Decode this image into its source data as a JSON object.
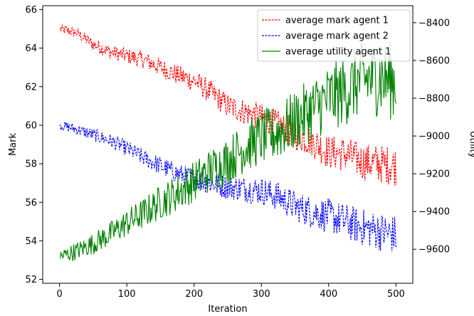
{
  "chart_data": {
    "type": "line",
    "title": "",
    "xlabel": "Iteration",
    "ylabel": "Mark",
    "y2label": "Utility",
    "xlim": [
      -25,
      525
    ],
    "ylim": [
      51.8,
      66.2
    ],
    "y2lim": [
      -9780,
      -8310
    ],
    "xticks": [
      0,
      100,
      200,
      300,
      400,
      500
    ],
    "yticks": [
      52,
      54,
      56,
      58,
      60,
      62,
      64,
      66
    ],
    "y2ticks": [
      -9600,
      -9400,
      -9200,
      -9000,
      -8800,
      -8600,
      -8400
    ],
    "grid": false,
    "legend_position": "upper right",
    "series": [
      {
        "name": "average mark agent 1",
        "axis": "left",
        "color": "#ff0000",
        "style": "dashed",
        "x": [
          0,
          25,
          50,
          75,
          100,
          125,
          150,
          175,
          200,
          225,
          250,
          275,
          300,
          325,
          350,
          375,
          400,
          425,
          450,
          475,
          500
        ],
        "values": [
          65.0,
          64.8,
          64.2,
          63.8,
          63.6,
          63.4,
          63.0,
          62.6,
          62.3,
          61.7,
          61.0,
          60.7,
          60.4,
          60.0,
          59.5,
          59.2,
          58.6,
          58.5,
          58.1,
          58.0,
          57.9
        ]
      },
      {
        "name": "average mark agent 2",
        "axis": "left",
        "color": "#0000ff",
        "style": "dashed",
        "x": [
          0,
          25,
          50,
          75,
          100,
          125,
          150,
          175,
          200,
          225,
          250,
          275,
          300,
          325,
          350,
          375,
          400,
          425,
          450,
          475,
          500
        ],
        "values": [
          60.0,
          59.8,
          59.5,
          59.2,
          58.8,
          58.3,
          57.9,
          57.5,
          57.2,
          57.0,
          56.8,
          56.7,
          56.6,
          56.3,
          55.8,
          55.5,
          55.3,
          55.0,
          54.7,
          54.5,
          54.3
        ]
      },
      {
        "name": "average utility agent 1",
        "axis": "right",
        "color": "#008000",
        "style": "solid",
        "x": [
          0,
          25,
          50,
          75,
          100,
          125,
          150,
          175,
          200,
          225,
          250,
          275,
          300,
          325,
          350,
          375,
          400,
          425,
          450,
          475,
          500
        ],
        "values": [
          -9640,
          -9610,
          -9570,
          -9520,
          -9460,
          -9410,
          -9350,
          -9300,
          -9240,
          -9180,
          -9130,
          -9060,
          -9010,
          -8980,
          -8920,
          -8860,
          -8800,
          -8760,
          -8700,
          -8690,
          -8710
        ]
      }
    ]
  }
}
